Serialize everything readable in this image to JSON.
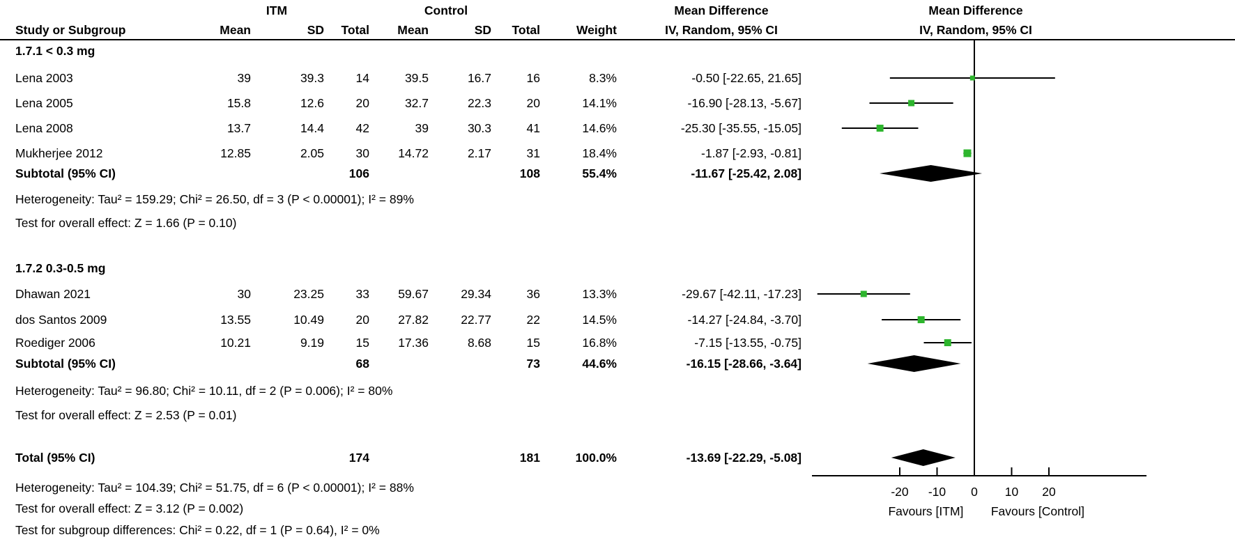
{
  "colors": {
    "square_green": "#2db52d",
    "diamond_black": "#000000",
    "line_black": "#000000",
    "background": "#ffffff"
  },
  "chart_data": {
    "type": "forest",
    "group_headers": {
      "itm": "ITM",
      "control": "Control",
      "md_text": "Mean Difference",
      "md_plot": "Mean Difference"
    },
    "col_headers": {
      "study": "Study or Subgroup",
      "mean": "Mean",
      "sd": "SD",
      "total": "Total",
      "mean2": "Mean",
      "sd2": "SD",
      "total2": "Total",
      "weight": "Weight",
      "ci_text": "IV, Random, 95% CI",
      "ci_plot": "IV, Random, 95% CI"
    },
    "xaxis": {
      "ticks": [
        "-20",
        "-10",
        "0",
        "10",
        "20"
      ],
      "tick_values": [
        -20,
        -10,
        0,
        10,
        20
      ],
      "range": [
        -43,
        45
      ],
      "favours_left": "Favours [ITM]",
      "favours_right": "Favours [Control]"
    },
    "subgroups": [
      {
        "name": "1.7.1 < 0.3 mg",
        "studies": [
          {
            "study": "Lena 2003",
            "mean1": "39",
            "sd1": "39.3",
            "total1": "14",
            "mean2": "39.5",
            "sd2": "16.7",
            "total2": "16",
            "weight": "8.3%",
            "ci_text": "-0.50 [-22.65, 21.65]",
            "md": -0.5,
            "lo": -22.65,
            "hi": 21.65,
            "weight_pct": 8.3
          },
          {
            "study": "Lena 2005",
            "mean1": "15.8",
            "sd1": "12.6",
            "total1": "20",
            "mean2": "32.7",
            "sd2": "22.3",
            "total2": "20",
            "weight": "14.1%",
            "ci_text": "-16.90 [-28.13, -5.67]",
            "md": -16.9,
            "lo": -28.13,
            "hi": -5.67,
            "weight_pct": 14.1
          },
          {
            "study": "Lena 2008",
            "mean1": "13.7",
            "sd1": "14.4",
            "total1": "42",
            "mean2": "39",
            "sd2": "30.3",
            "total2": "41",
            "weight": "14.6%",
            "ci_text": "-25.30 [-35.55, -15.05]",
            "md": -25.3,
            "lo": -35.55,
            "hi": -15.05,
            "weight_pct": 14.6
          },
          {
            "study": "Mukherjee 2012",
            "mean1": "12.85",
            "sd1": "2.05",
            "total1": "30",
            "mean2": "14.72",
            "sd2": "2.17",
            "total2": "31",
            "weight": "18.4%",
            "ci_text": "-1.87 [-2.93, -0.81]",
            "md": -1.87,
            "lo": -2.93,
            "hi": -0.81,
            "weight_pct": 18.4
          }
        ],
        "subtotal": {
          "label": "Subtotal (95% CI)",
          "total1": "106",
          "total2": "108",
          "weight": "55.4%",
          "ci_text": "-11.67 [-25.42, 2.08]",
          "md": -11.67,
          "lo": -25.42,
          "hi": 2.08
        },
        "heterogeneity": "Heterogeneity: Tau² = 159.29; Chi² = 26.50, df = 3 (P < 0.00001); I² = 89%",
        "overall_effect": "Test for overall effect: Z = 1.66 (P = 0.10)"
      },
      {
        "name": "1.7.2 0.3-0.5 mg",
        "studies": [
          {
            "study": "Dhawan 2021",
            "mean1": "30",
            "sd1": "23.25",
            "total1": "33",
            "mean2": "59.67",
            "sd2": "29.34",
            "total2": "36",
            "weight": "13.3%",
            "ci_text": "-29.67 [-42.11, -17.23]",
            "md": -29.67,
            "lo": -42.11,
            "hi": -17.23,
            "weight_pct": 13.3
          },
          {
            "study": "dos Santos 2009",
            "mean1": "13.55",
            "sd1": "10.49",
            "total1": "20",
            "mean2": "27.82",
            "sd2": "22.77",
            "total2": "22",
            "weight": "14.5%",
            "ci_text": "-14.27 [-24.84, -3.70]",
            "md": -14.27,
            "lo": -24.84,
            "hi": -3.7,
            "weight_pct": 14.5
          },
          {
            "study": "Roediger 2006",
            "mean1": "10.21",
            "sd1": "9.19",
            "total1": "15",
            "mean2": "17.36",
            "sd2": "8.68",
            "total2": "15",
            "weight": "16.8%",
            "ci_text": "-7.15 [-13.55, -0.75]",
            "md": -7.15,
            "lo": -13.55,
            "hi": -0.75,
            "weight_pct": 16.8
          }
        ],
        "subtotal": {
          "label": "Subtotal (95% CI)",
          "total1": "68",
          "total2": "73",
          "weight": "44.6%",
          "ci_text": "-16.15 [-28.66, -3.64]",
          "md": -16.15,
          "lo": -28.66,
          "hi": -3.64
        },
        "heterogeneity": "Heterogeneity: Tau² = 96.80; Chi² = 10.11, df = 2 (P = 0.006); I² = 80%",
        "overall_effect": "Test for overall effect: Z = 2.53 (P = 0.01)"
      }
    ],
    "total": {
      "label": "Total (95% CI)",
      "total1": "174",
      "total2": "181",
      "weight": "100.0%",
      "ci_text": "-13.69 [-22.29, -5.08]",
      "md": -13.69,
      "lo": -22.29,
      "hi": -5.08
    },
    "total_heterogeneity": "Heterogeneity: Tau² = 104.39; Chi² = 51.75, df = 6 (P < 0.00001); I² = 88%",
    "total_overall_effect": "Test for overall effect: Z = 3.12 (P = 0.002)",
    "subgroup_differences": "Test for subgroup differences: Chi² = 0.22, df = 1 (P = 0.64), I² = 0%"
  }
}
